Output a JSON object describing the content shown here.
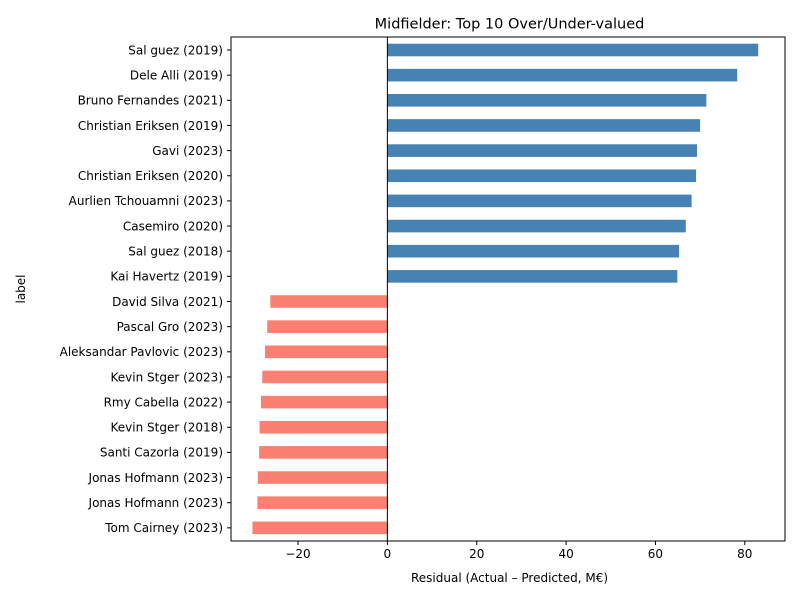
{
  "chart_data": {
    "type": "bar",
    "orientation": "horizontal",
    "title": "Midfielder: Top 10 Over/Under-valued",
    "xlabel": "Residual (Actual – Predicted, M€)",
    "ylabel": "label",
    "xlim": [
      -35,
      89
    ],
    "xticks": [
      -20,
      0,
      20,
      40,
      60,
      80
    ],
    "xtick_labels": [
      "−20",
      "0",
      "20",
      "40",
      "60",
      "80"
    ],
    "grid": false,
    "legend": "none",
    "colors": {
      "positive": "#4682b4",
      "negative": "#fa8072",
      "zero_line": "#000000"
    },
    "categories": [
      "Sal guez (2019)",
      "Dele Alli (2019)",
      "Bruno Fernandes (2021)",
      "Christian Eriksen (2019)",
      "Gavi (2023)",
      "Christian Eriksen (2020)",
      "Aurlien Tchouamni (2023)",
      "Casemiro (2020)",
      "Sal guez (2018)",
      "Kai Havertz (2019)",
      "David Silva (2021)",
      "Pascal Gro (2023)",
      "Aleksandar Pavlovic (2023)",
      "Kevin Stger (2023)",
      "Rmy Cabella (2022)",
      "Kevin Stger (2018)",
      "Santi Cazorla (2019)",
      "Jonas Hofmann (2023)",
      "Jonas Hofmann (2023)",
      "Tom Cairney (2023)"
    ],
    "values": [
      83.0,
      78.3,
      71.4,
      70.0,
      69.3,
      69.1,
      68.1,
      66.8,
      65.3,
      64.9,
      -26.2,
      -26.9,
      -27.4,
      -28.0,
      -28.3,
      -28.6,
      -28.7,
      -29.0,
      -29.1,
      -30.2
    ]
  }
}
